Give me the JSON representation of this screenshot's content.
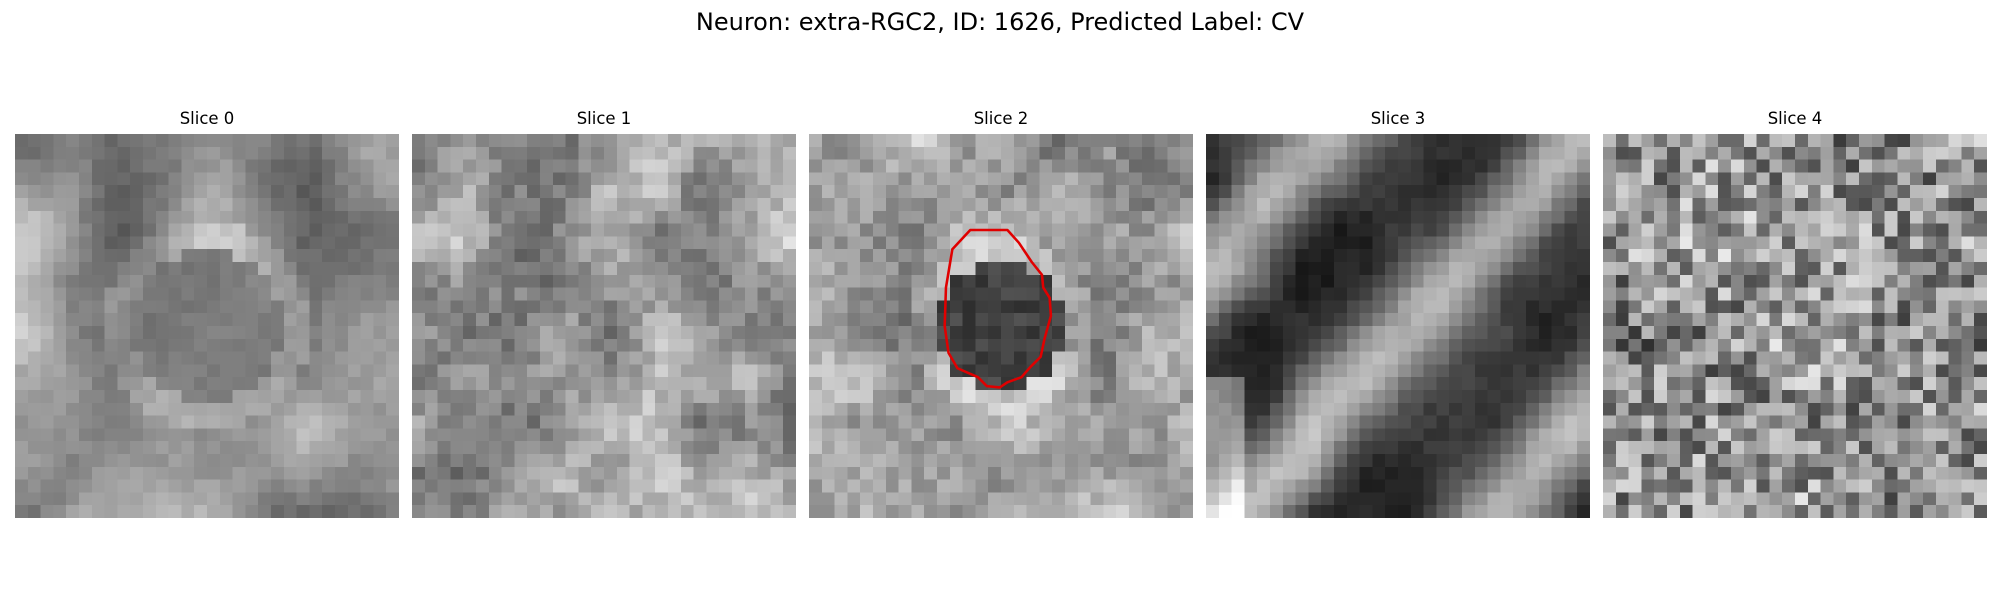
{
  "figure": {
    "title": "Neuron: extra-RGC2, ID: 1626, Predicted Label: CV"
  },
  "slices": [
    {
      "title": "Slice 0",
      "pattern": "blurry-soma-center",
      "seed": 11
    },
    {
      "title": "Slice 1",
      "pattern": "mottled-bright",
      "seed": 23
    },
    {
      "title": "Slice 2",
      "pattern": "dark-soma-outlined",
      "seed": 37
    },
    {
      "title": "Slice 3",
      "pattern": "dark-diagonal-bands",
      "seed": 53
    },
    {
      "title": "Slice 4",
      "pattern": "high-noise",
      "seed": 71
    }
  ],
  "contour": {
    "slice_index": 2,
    "color": "#e00000",
    "points_grid": [
      [
        15,
        7.5
      ],
      [
        12.6,
        7.5
      ],
      [
        11.2,
        9
      ],
      [
        10.9,
        10.8
      ],
      [
        10.7,
        12
      ],
      [
        10.6,
        15
      ],
      [
        10.9,
        17.1
      ],
      [
        11.6,
        18.3
      ],
      [
        13.2,
        19
      ],
      [
        13.9,
        19.7
      ],
      [
        14.9,
        19.8
      ],
      [
        15.5,
        19.4
      ],
      [
        16.6,
        19
      ],
      [
        17.3,
        18.2
      ],
      [
        18.1,
        17.4
      ],
      [
        18.4,
        16
      ],
      [
        18.9,
        14.2
      ],
      [
        18.8,
        12.8
      ],
      [
        18.3,
        12
      ],
      [
        18.2,
        11
      ],
      [
        17.4,
        10
      ],
      [
        16.4,
        8.5
      ],
      [
        15.5,
        7.5
      ]
    ]
  },
  "grid_size": 30,
  "cmap": "gray"
}
